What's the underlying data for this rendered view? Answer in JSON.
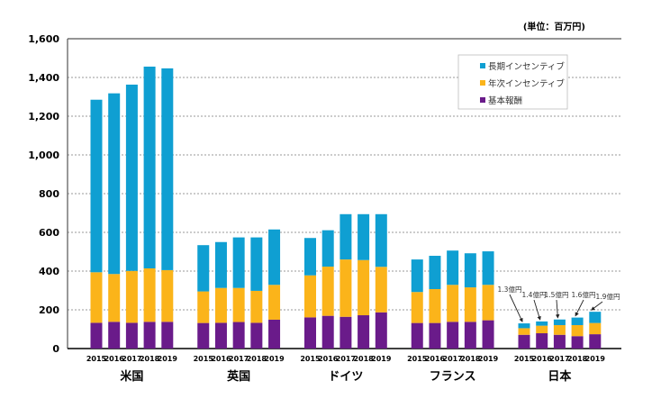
{
  "chart_data": {
    "type": "bar",
    "stacked": true,
    "unit_label": "(単位：百万円)",
    "ylim": [
      0,
      1600
    ],
    "yticks": [
      "0",
      "200",
      "400",
      "600",
      "800",
      "1,000",
      "1,200",
      "1,400",
      "1,600"
    ],
    "grid": true,
    "legend_position": "top-right",
    "years": [
      "2015",
      "2016",
      "2017",
      "2018",
      "2019"
    ],
    "groups": [
      "米国",
      "英国",
      "ドイツ",
      "フランス",
      "日本"
    ],
    "series": [
      {
        "name": "基本報酬",
        "color": "#6a1b8a",
        "values": [
          [
            133,
            138,
            133,
            138,
            138
          ],
          [
            132,
            133,
            137,
            133,
            149
          ],
          [
            161,
            169,
            164,
            172,
            187
          ],
          [
            132,
            132,
            138,
            138,
            146
          ],
          [
            71,
            79,
            71,
            64,
            74
          ]
        ]
      },
      {
        "name": "年次インセンティブ",
        "color": "#fbb41a",
        "values": [
          [
            261,
            247,
            268,
            276,
            267
          ],
          [
            163,
            180,
            176,
            165,
            180
          ],
          [
            217,
            254,
            296,
            285,
            235
          ],
          [
            160,
            175,
            191,
            178,
            183
          ],
          [
            34,
            39,
            50,
            57,
            58
          ]
        ]
      },
      {
        "name": "長期インセンティブ",
        "color": "#0f9fd2",
        "values": [
          [
            891,
            933,
            962,
            1042,
            1042
          ],
          [
            239,
            237,
            261,
            276,
            286
          ],
          [
            193,
            188,
            234,
            237,
            272
          ],
          [
            168,
            172,
            177,
            176,
            173
          ],
          [
            25,
            22,
            29,
            39,
            58
          ]
        ]
      }
    ],
    "legend_order": [
      "長期インセンティブ",
      "年次インセンティブ",
      "基本報酬"
    ],
    "annotations": [
      "1.3億円",
      "1.4億円",
      "1.5億円",
      "1.6億円",
      "1.9億円"
    ]
  }
}
